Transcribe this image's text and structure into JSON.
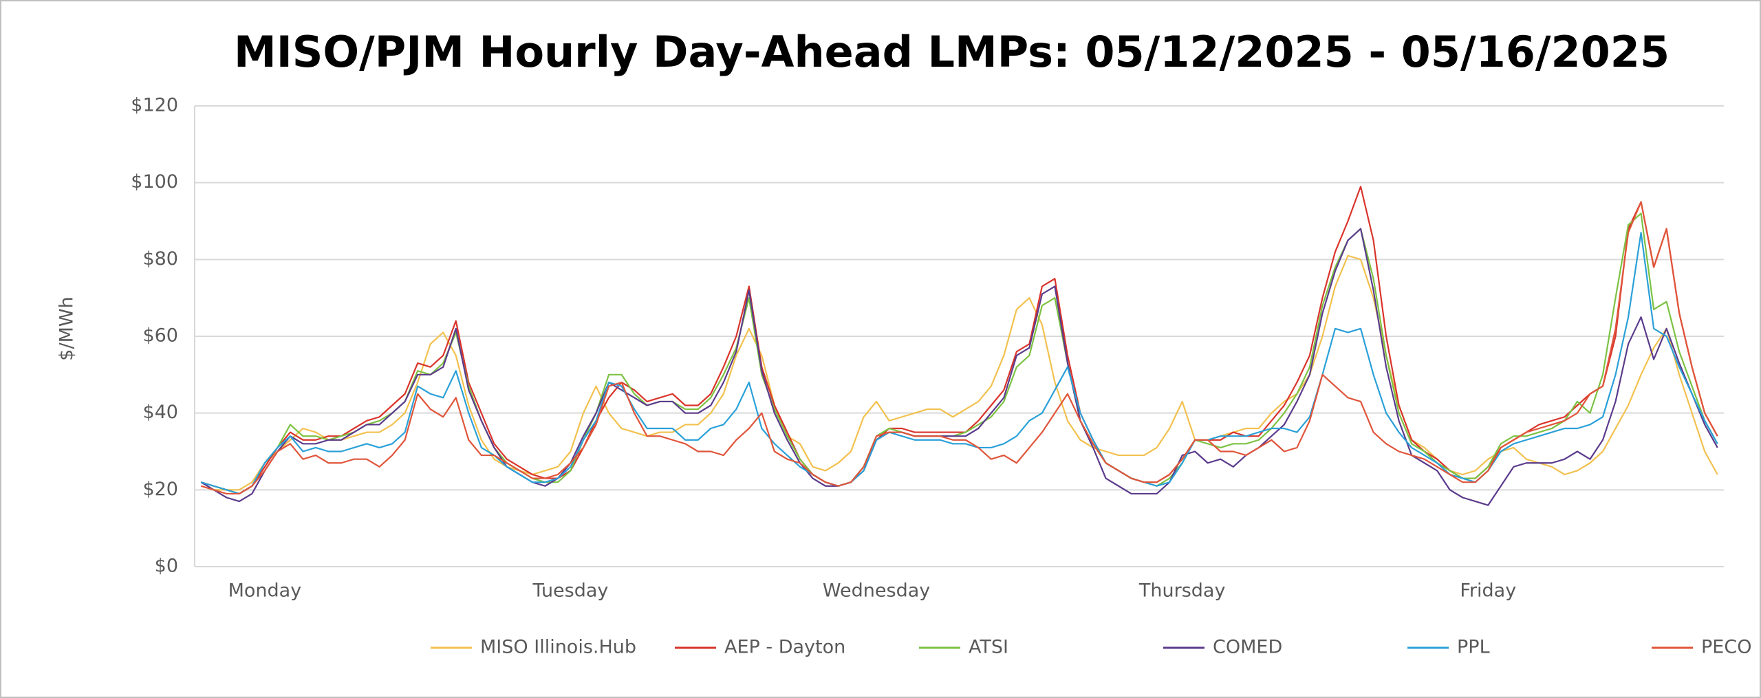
{
  "chart_data": {
    "type": "line",
    "title": "MISO/PJM Hourly Day-Ahead LMPs: 05/12/2025 - 05/16/2025",
    "y_label": "$/MWh",
    "categories": [
      null,
      null,
      null,
      null,
      null,
      "Monday",
      null,
      null,
      null,
      null,
      null,
      null,
      null,
      null,
      null,
      null,
      null,
      null,
      null,
      null,
      null,
      null,
      null,
      null,
      null,
      null,
      null,
      null,
      null,
      "Tuesday",
      null,
      null,
      null,
      null,
      null,
      null,
      null,
      null,
      null,
      null,
      null,
      null,
      null,
      null,
      null,
      null,
      null,
      null,
      null,
      null,
      null,
      null,
      null,
      "Wednesday",
      null,
      null,
      null,
      null,
      null,
      null,
      null,
      null,
      null,
      null,
      null,
      null,
      null,
      null,
      null,
      null,
      null,
      null,
      null,
      null,
      null,
      null,
      null,
      "Thursday",
      null,
      null,
      null,
      null,
      null,
      null,
      null,
      null,
      null,
      null,
      null,
      null,
      null,
      null,
      null,
      null,
      null,
      null,
      null,
      null,
      null,
      null,
      null,
      "Friday",
      null,
      null,
      null,
      null,
      null,
      null,
      null,
      null,
      null,
      null,
      null,
      null,
      null,
      null,
      null,
      null,
      null,
      null
    ],
    "ylim": [
      0,
      120
    ],
    "yticks": [
      {
        "value": 0,
        "label": "$0"
      },
      {
        "value": 20,
        "label": "$20"
      },
      {
        "value": 40,
        "label": "$40"
      },
      {
        "value": 60,
        "label": "$60"
      },
      {
        "value": 80,
        "label": "$80"
      },
      {
        "value": 100,
        "label": "$100"
      },
      {
        "value": 120,
        "label": "$120"
      }
    ],
    "grid": true,
    "legend": "bottom",
    "series": [
      {
        "name": "MISO Illinois.Hub",
        "color": "#f2c14e",
        "values": [
          21,
          20,
          20,
          20,
          22,
          27,
          30,
          33,
          36,
          35,
          33,
          33,
          34,
          35,
          35,
          37,
          40,
          48,
          58,
          61,
          55,
          42,
          33,
          28,
          26,
          25,
          24,
          25,
          26,
          30,
          40,
          47,
          40,
          36,
          35,
          34,
          35,
          35,
          37,
          37,
          40,
          45,
          55,
          62,
          55,
          42,
          34,
          32,
          26,
          25,
          27,
          30,
          39,
          43,
          38,
          39,
          40,
          41,
          41,
          39,
          41,
          43,
          47,
          55,
          67,
          70,
          63,
          48,
          38,
          33,
          31,
          30,
          29,
          29,
          29,
          31,
          36,
          43,
          33,
          33,
          34,
          35,
          36,
          36,
          40,
          43,
          45,
          50,
          60,
          73,
          81,
          80,
          70,
          55,
          42,
          33,
          31,
          28,
          25,
          24,
          25,
          28,
          30,
          31,
          28,
          27,
          26,
          24,
          25,
          27,
          30,
          36,
          42,
          50,
          57,
          62,
          50,
          40,
          30,
          24
        ]
      },
      {
        "name": "AEP - Dayton",
        "color": "#d9342b",
        "values": [
          22,
          21,
          20,
          19,
          21,
          26,
          31,
          35,
          33,
          33,
          34,
          34,
          36,
          38,
          39,
          42,
          45,
          53,
          52,
          55,
          64,
          48,
          40,
          32,
          28,
          26,
          24,
          23,
          23,
          25,
          31,
          38,
          44,
          48,
          46,
          43,
          44,
          45,
          42,
          42,
          45,
          52,
          60,
          73,
          52,
          42,
          35,
          28,
          24,
          22,
          21,
          22,
          26,
          33,
          36,
          36,
          35,
          35,
          35,
          35,
          35,
          38,
          42,
          46,
          56,
          58,
          73,
          75,
          55,
          40,
          33,
          27,
          25,
          23,
          22,
          22,
          24,
          28,
          33,
          33,
          33,
          35,
          34,
          34,
          38,
          42,
          48,
          55,
          70,
          82,
          90,
          99,
          85,
          60,
          42,
          33,
          30,
          28,
          25,
          23,
          23,
          26,
          31,
          33,
          35,
          37,
          38,
          39,
          42,
          45,
          47,
          60,
          88,
          95,
          78,
          88,
          66,
          52,
          40,
          34
        ]
      },
      {
        "name": "ATSI",
        "color": "#7cc242",
        "values": [
          22,
          21,
          20,
          19,
          21,
          27,
          31,
          37,
          34,
          34,
          33,
          34,
          35,
          37,
          38,
          40,
          43,
          51,
          50,
          53,
          61,
          47,
          38,
          31,
          27,
          25,
          23,
          22,
          22,
          25,
          33,
          40,
          50,
          50,
          45,
          42,
          43,
          43,
          41,
          41,
          44,
          50,
          57,
          70,
          50,
          41,
          34,
          28,
          24,
          22,
          21,
          22,
          26,
          34,
          36,
          35,
          34,
          34,
          34,
          34,
          35,
          37,
          39,
          43,
          52,
          55,
          68,
          70,
          53,
          38,
          32,
          27,
          25,
          23,
          22,
          21,
          23,
          27,
          33,
          32,
          31,
          32,
          32,
          33,
          36,
          40,
          45,
          52,
          68,
          78,
          85,
          88,
          75,
          55,
          40,
          32,
          30,
          27,
          25,
          23,
          23,
          26,
          32,
          34,
          34,
          35,
          36,
          38,
          43,
          40,
          50,
          70,
          89,
          92,
          67,
          69,
          56,
          47,
          38,
          32
        ]
      },
      {
        "name": "COMED",
        "color": "#5b3b8c",
        "values": [
          22,
          20,
          18,
          17,
          19,
          25,
          30,
          34,
          32,
          32,
          33,
          33,
          35,
          37,
          37,
          40,
          43,
          50,
          50,
          52,
          62,
          46,
          38,
          31,
          26,
          24,
          22,
          21,
          23,
          27,
          34,
          40,
          48,
          46,
          44,
          42,
          43,
          43,
          40,
          40,
          42,
          48,
          56,
          72,
          51,
          40,
          33,
          27,
          23,
          21,
          21,
          22,
          25,
          33,
          35,
          35,
          34,
          34,
          34,
          34,
          34,
          36,
          40,
          44,
          55,
          57,
          71,
          73,
          53,
          38,
          31,
          23,
          21,
          19,
          19,
          19,
          22,
          29,
          30,
          27,
          28,
          26,
          29,
          31,
          34,
          37,
          43,
          50,
          66,
          77,
          85,
          88,
          72,
          52,
          38,
          29,
          27,
          25,
          20,
          18,
          17,
          16,
          21,
          26,
          27,
          27,
          27,
          28,
          30,
          28,
          33,
          43,
          58,
          65,
          54,
          62,
          53,
          45,
          37,
          31
        ]
      },
      {
        "name": "PPL",
        "color": "#2aa0d8",
        "values": [
          22,
          21,
          20,
          19,
          21,
          27,
          31,
          34,
          30,
          31,
          30,
          30,
          31,
          32,
          31,
          32,
          35,
          47,
          45,
          44,
          51,
          40,
          31,
          29,
          26,
          24,
          22,
          22,
          23,
          26,
          33,
          38,
          48,
          47,
          41,
          36,
          36,
          36,
          33,
          33,
          36,
          37,
          41,
          48,
          36,
          32,
          29,
          26,
          24,
          22,
          21,
          22,
          25,
          33,
          35,
          34,
          33,
          33,
          33,
          32,
          32,
          31,
          31,
          32,
          34,
          38,
          40,
          46,
          52,
          40,
          33,
          27,
          25,
          23,
          22,
          21,
          22,
          27,
          33,
          33,
          34,
          34,
          34,
          35,
          36,
          36,
          35,
          39,
          50,
          62,
          61,
          62,
          50,
          40,
          35,
          31,
          29,
          27,
          24,
          23,
          22,
          25,
          30,
          32,
          33,
          34,
          35,
          36,
          36,
          37,
          39,
          50,
          65,
          87,
          62,
          60,
          52,
          45,
          38,
          32
        ]
      },
      {
        "name": "PECO",
        "color": "#e0553a",
        "values": [
          21,
          20,
          19,
          19,
          21,
          25,
          30,
          32,
          28,
          29,
          27,
          27,
          28,
          28,
          26,
          29,
          33,
          45,
          41,
          39,
          44,
          33,
          29,
          29,
          27,
          25,
          23,
          23,
          24,
          27,
          31,
          37,
          47,
          48,
          40,
          34,
          34,
          33,
          32,
          30,
          30,
          29,
          33,
          36,
          40,
          30,
          28,
          27,
          24,
          22,
          21,
          22,
          26,
          34,
          35,
          35,
          34,
          34,
          34,
          33,
          33,
          31,
          28,
          29,
          27,
          31,
          35,
          40,
          45,
          38,
          32,
          27,
          25,
          23,
          22,
          22,
          24,
          28,
          33,
          33,
          30,
          30,
          29,
          31,
          33,
          30,
          31,
          38,
          50,
          47,
          44,
          43,
          35,
          32,
          30,
          29,
          28,
          26,
          24,
          22,
          22,
          25,
          31,
          33,
          35,
          36,
          37,
          38,
          40,
          45,
          47,
          62,
          87,
          95,
          78,
          88,
          66,
          52,
          40,
          34
        ]
      }
    ]
  }
}
